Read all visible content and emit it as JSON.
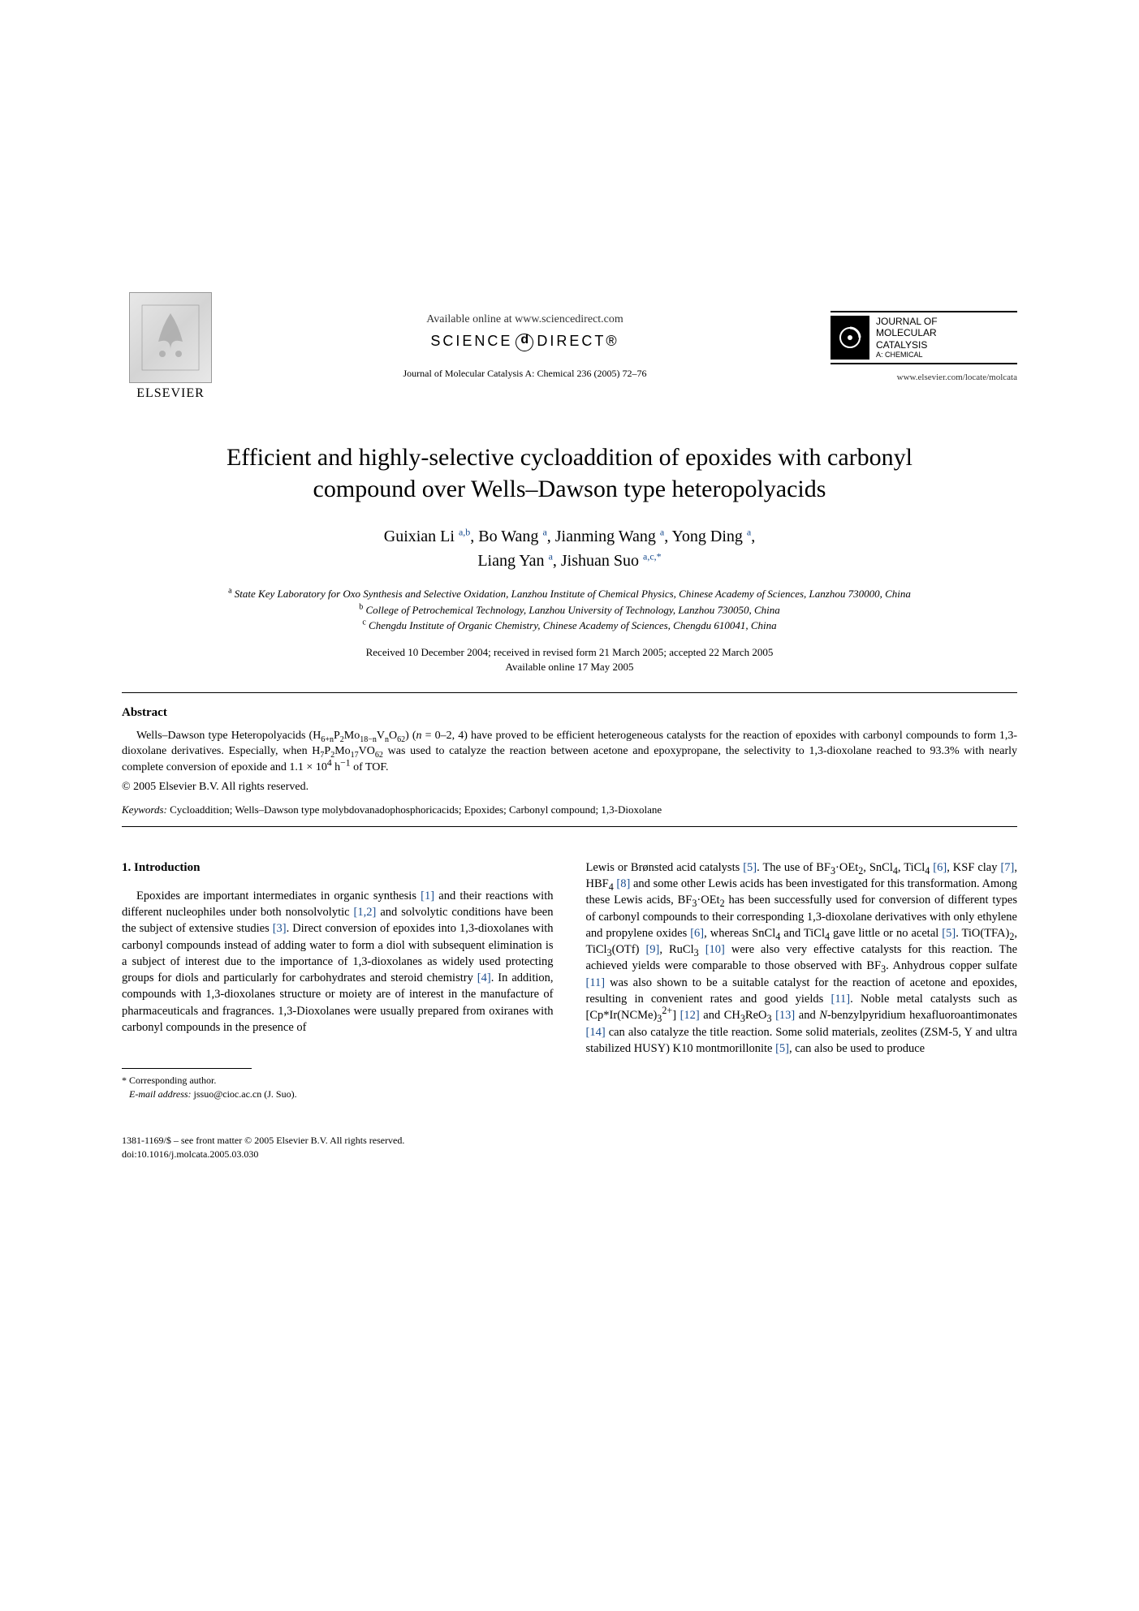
{
  "header": {
    "elsevier_label": "ELSEVIER",
    "available_online": "Available online at www.sciencedirect.com",
    "sciencedirect_prefix": "SCIENCE",
    "sciencedirect_suffix": "DIRECT®",
    "journal_ref": "Journal of Molecular Catalysis A: Chemical 236 (2005) 72–76",
    "journal_box_lines": [
      "JOURNAL OF",
      "MOLECULAR",
      "CATALYSIS"
    ],
    "journal_box_sub": "A: CHEMICAL",
    "journal_url": "www.elsevier.com/locate/molcata"
  },
  "title_line1": "Efficient and highly-selective cycloaddition of epoxides with carbonyl",
  "title_line2": "compound over Wells–Dawson type heteropolyacids",
  "authors_html": "Guixian Li <sup>a,b</sup>, Bo Wang <sup>a</sup>, Jianming Wang <sup>a</sup>, Yong Ding <sup>a</sup>,<br>Liang Yan <sup>a</sup>, Jishuan Suo <sup>a,c,*</sup>",
  "affiliations": [
    {
      "sup": "a",
      "text": "State Key Laboratory for Oxo Synthesis and Selective Oxidation, Lanzhou Institute of Chemical Physics, Chinese Academy of Sciences, Lanzhou 730000, China"
    },
    {
      "sup": "b",
      "text": "College of Petrochemical Technology, Lanzhou University of Technology, Lanzhou 730050, China"
    },
    {
      "sup": "c",
      "text": "Chengdu Institute of Organic Chemistry, Chinese Academy of Sciences, Chengdu 610041, China"
    }
  ],
  "dates_line1": "Received 10 December 2004; received in revised form 21 March 2005; accepted 22 March 2005",
  "dates_line2": "Available online 17 May 2005",
  "abstract_heading": "Abstract",
  "abstract_html": "Wells–Dawson type Heteropolyacids (H<sub>6+n</sub>P<sub>2</sub>Mo<sub>18−n</sub>V<sub>n</sub>O<sub>62</sub>) (<i>n</i> = 0–2, 4) have proved to be efficient heterogeneous catalysts for the reaction of epoxides with carbonyl compounds to form 1,3-dioxolane derivatives. Especially, when H<sub>7</sub>P<sub>2</sub>Mo<sub>17</sub>VO<sub>62</sub> was used to catalyze the reaction between acetone and epoxypropane, the selectivity to 1,3-dioxolane reached to 93.3% with nearly complete conversion of epoxide and 1.1 × 10<sup>4</sup> h<sup>−1</sup> of TOF.",
  "copyright": "© 2005 Elsevier B.V. All rights reserved.",
  "keywords_label": "Keywords:",
  "keywords_text": " Cycloaddition; Wells–Dawson type molybdovanadophosphoricacids; Epoxides; Carbonyl compound; 1,3-Dioxolane",
  "intro_heading": "1. Introduction",
  "intro_col1_html": "Epoxides are important intermediates in organic synthesis <span class=\"ref\">[1]</span> and their reactions with different nucleophiles under both nonsolvolytic <span class=\"ref\">[1,2]</span> and solvolytic conditions have been the subject of extensive studies <span class=\"ref\">[3]</span>. Direct conversion of epoxides into 1,3-dioxolanes with carbonyl compounds instead of adding water to form a diol with subsequent elimination is a subject of interest due to the importance of 1,3-dioxolanes as widely used protecting groups for diols and particularly for carbohydrates and steroid chemistry <span class=\"ref\">[4]</span>. In addition, compounds with 1,3-dioxolanes structure or moiety are of interest in the manufacture of pharmaceuticals and fragrances. 1,3-Dioxolanes were usually prepared from oxiranes with carbonyl compounds in the presence of",
  "intro_col2_html": "Lewis or Brønsted acid catalysts <span class=\"ref\">[5]</span>. The use of BF<sub>3</sub>·OEt<sub>2</sub>, SnCl<sub>4</sub>, TiCl<sub>4</sub> <span class=\"ref\">[6]</span>, KSF clay <span class=\"ref\">[7]</span>, HBF<sub>4</sub> <span class=\"ref\">[8]</span> and some other Lewis acids has been investigated for this transformation. Among these Lewis acids, BF<sub>3</sub>·OEt<sub>2</sub> has been successfully used for conversion of different types of carbonyl compounds to their corresponding 1,3-dioxolane derivatives with only ethylene and propylene oxides <span class=\"ref\">[6]</span>, whereas SnCl<sub>4</sub> and TiCl<sub>4</sub> gave little or no acetal <span class=\"ref\">[5]</span>. TiO(TFA)<sub>2</sub>, TiCl<sub>3</sub>(OTf) <span class=\"ref\">[9]</span>, RuCl<sub>3</sub> <span class=\"ref\">[10]</span> were also very effective catalysts for this reaction. The achieved yields were comparable to those observed with BF<sub>3</sub>. Anhydrous copper sulfate <span class=\"ref\">[11]</span> was also shown to be a suitable catalyst for the reaction of acetone and epoxides, resulting in convenient rates and good yields <span class=\"ref\">[11]</span>. Noble metal catalysts such as [Cp*Ir(NCMe)<sub>3</sub><sup>2+</sup>] <span class=\"ref\">[12]</span> and CH<sub>3</sub>ReO<sub>3</sub> <span class=\"ref\">[13]</span> and <i>N</i>-benzylpyridium hexafluoroantimonates <span class=\"ref\">[14]</span> can also catalyze the title reaction. Some solid materials, zeolites (ZSM-5, Y and ultra stabilized HUSY) K10 montmorillonite <span class=\"ref\">[5]</span>, can also be used to produce",
  "footnote_marker": "* Corresponding author.",
  "footnote_email_label": "E-mail address:",
  "footnote_email": " jssuo@cioc.ac.cn (J. Suo).",
  "bottom_line1": "1381-1169/$ – see front matter © 2005 Elsevier B.V. All rights reserved.",
  "bottom_line2": "doi:10.1016/j.molcata.2005.03.030",
  "colors": {
    "text": "#000000",
    "link": "#1a4d8f",
    "background": "#ffffff"
  },
  "typography": {
    "body_family": "Times New Roman",
    "title_size_pt": 22,
    "body_size_pt": 11,
    "abstract_size_pt": 10
  }
}
